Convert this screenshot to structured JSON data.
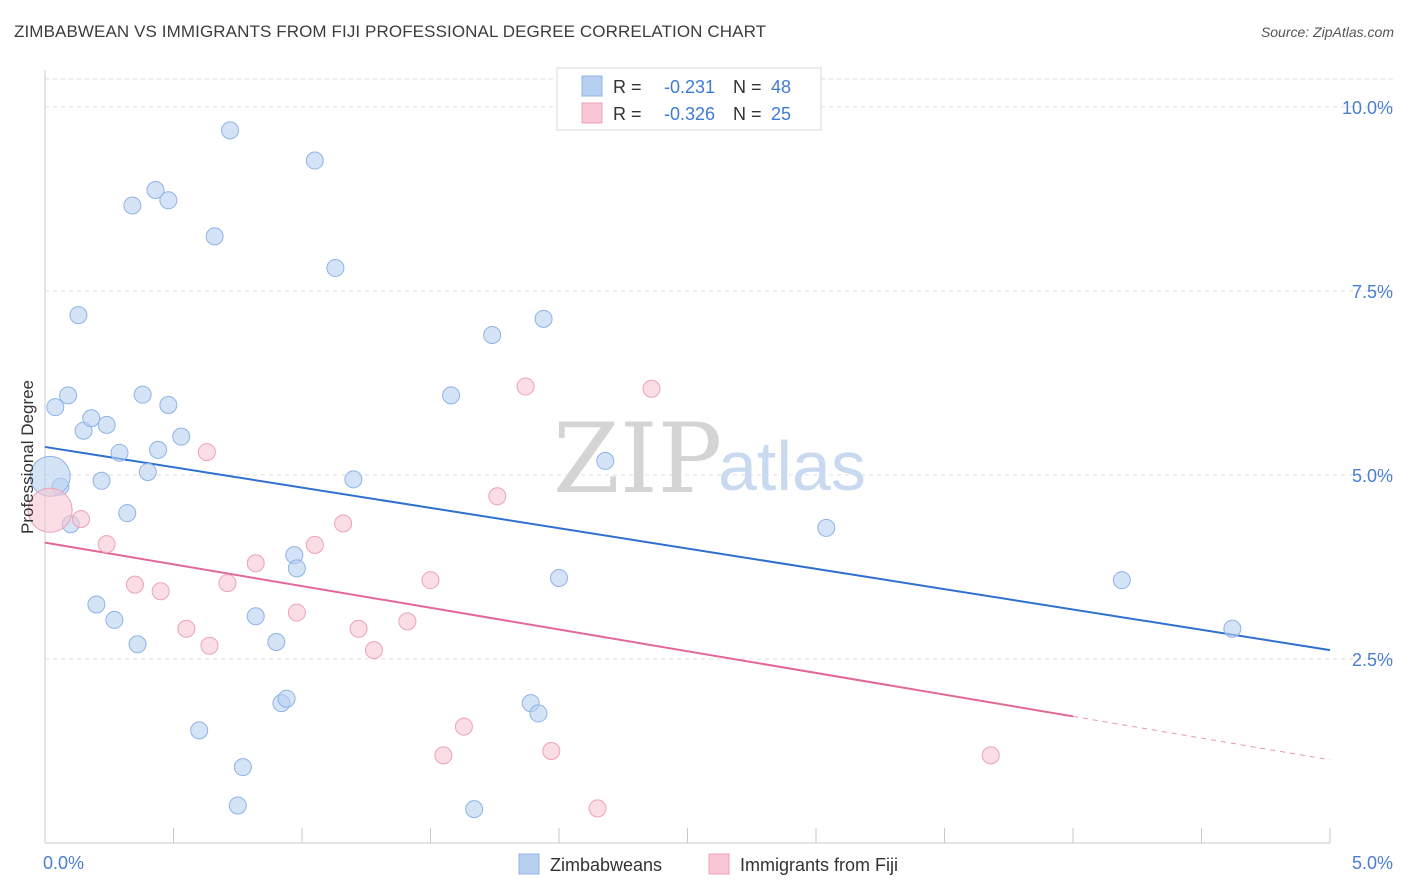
{
  "title": "ZIMBABWEAN VS IMMIGRANTS FROM FIJI PROFESSIONAL DEGREE CORRELATION CHART",
  "source": "Source: ZipAtlas.com",
  "watermark": {
    "part1": "ZIP",
    "part2": "atlas"
  },
  "colors": {
    "blue_fill": "#b8d0f0",
    "blue_stroke": "#8fb3e6",
    "blue_line": "#2f6fd0",
    "pink_fill": "#f8c6d4",
    "pink_stroke": "#eba3b9",
    "pink_line": "#e2689a",
    "grid": "#dddddd",
    "tick_text": "#4a7fd0"
  },
  "legend_top": {
    "rows": [
      {
        "r_label": "R =",
        "r_value": "-0.231",
        "n_label": "N =",
        "n_value": "48"
      },
      {
        "r_label": "R =",
        "r_value": "-0.326",
        "n_label": "N =",
        "n_value": "25"
      }
    ]
  },
  "legend_bottom": {
    "items": [
      "Zimbabweans",
      "Immigrants from Fiji"
    ]
  },
  "chart_data": {
    "type": "scatter",
    "title": "ZIMBABWEAN VS IMMIGRANTS FROM FIJI PROFESSIONAL DEGREE CORRELATION CHART",
    "xlabel": "",
    "ylabel": "Professional Degree",
    "xlim": [
      0,
      5.0
    ],
    "ylim": [
      0,
      10.5
    ],
    "x_tick_labels": [
      "0.0%",
      "5.0%"
    ],
    "y_ticks": [
      2.5,
      5.0,
      7.5,
      10.0
    ],
    "y_tick_labels": [
      "2.5%",
      "5.0%",
      "7.5%",
      "10.0%"
    ],
    "grid": true,
    "series": [
      {
        "name": "Zimbabweans",
        "r": -0.231,
        "n": 48,
        "trend": {
          "x0": 0.0,
          "y0": 5.38,
          "x1": 5.0,
          "y1": 2.62
        },
        "points": [
          [
            0.04,
            5.92
          ],
          [
            0.09,
            6.08
          ],
          [
            0.13,
            7.17
          ],
          [
            0.15,
            5.6
          ],
          [
            0.18,
            5.77
          ],
          [
            0.24,
            5.68
          ],
          [
            0.29,
            5.3
          ],
          [
            0.34,
            8.66
          ],
          [
            0.38,
            6.09
          ],
          [
            0.4,
            5.04
          ],
          [
            0.43,
            8.87
          ],
          [
            0.44,
            5.34
          ],
          [
            0.48,
            8.73
          ],
          [
            0.48,
            5.95
          ],
          [
            0.53,
            5.52
          ],
          [
            0.66,
            8.24
          ],
          [
            0.72,
            9.68
          ],
          [
            0.06,
            4.84
          ],
          [
            0.1,
            4.33
          ],
          [
            0.22,
            4.92
          ],
          [
            0.32,
            4.48
          ],
          [
            0.2,
            3.24
          ],
          [
            0.27,
            3.03
          ],
          [
            0.36,
            2.7
          ],
          [
            0.6,
            1.53
          ],
          [
            0.77,
            1.03
          ],
          [
            0.75,
            0.51
          ],
          [
            0.82,
            3.08
          ],
          [
            0.9,
            2.73
          ],
          [
            0.92,
            1.9
          ],
          [
            0.94,
            1.96
          ],
          [
            0.97,
            3.91
          ],
          [
            0.98,
            3.73
          ],
          [
            1.05,
            9.27
          ],
          [
            1.13,
            7.81
          ],
          [
            1.2,
            4.94
          ],
          [
            1.58,
            6.08
          ],
          [
            1.74,
            6.9
          ],
          [
            1.67,
            0.46
          ],
          [
            1.89,
            1.9
          ],
          [
            1.92,
            1.76
          ],
          [
            1.94,
            7.12
          ],
          [
            2.0,
            3.6
          ],
          [
            2.18,
            5.19
          ],
          [
            3.04,
            4.28
          ],
          [
            4.19,
            3.57
          ],
          [
            4.62,
            2.91
          ],
          [
            0.02,
            4.98
          ]
        ]
      },
      {
        "name": "Immigrants from Fiji",
        "r": -0.326,
        "n": 25,
        "trend": {
          "x0": 0.0,
          "y0": 4.08,
          "x1": 4.0,
          "y1": 1.72,
          "dash_to_x": 5.0,
          "dash_to_y": 1.13
        },
        "points": [
          [
            0.02,
            4.52
          ],
          [
            0.14,
            4.4
          ],
          [
            0.24,
            4.06
          ],
          [
            0.35,
            3.51
          ],
          [
            0.45,
            3.42
          ],
          [
            0.55,
            2.91
          ],
          [
            0.63,
            5.31
          ],
          [
            0.64,
            2.68
          ],
          [
            0.71,
            3.53
          ],
          [
            0.82,
            3.8
          ],
          [
            0.98,
            3.13
          ],
          [
            1.05,
            4.05
          ],
          [
            1.16,
            4.34
          ],
          [
            1.22,
            2.91
          ],
          [
            1.28,
            2.62
          ],
          [
            1.41,
            3.01
          ],
          [
            1.5,
            3.57
          ],
          [
            1.55,
            1.19
          ],
          [
            1.63,
            1.58
          ],
          [
            1.76,
            4.71
          ],
          [
            1.87,
            6.2
          ],
          [
            1.97,
            1.25
          ],
          [
            2.15,
            0.47
          ],
          [
            2.36,
            6.17
          ],
          [
            3.68,
            1.19
          ]
        ]
      }
    ]
  }
}
